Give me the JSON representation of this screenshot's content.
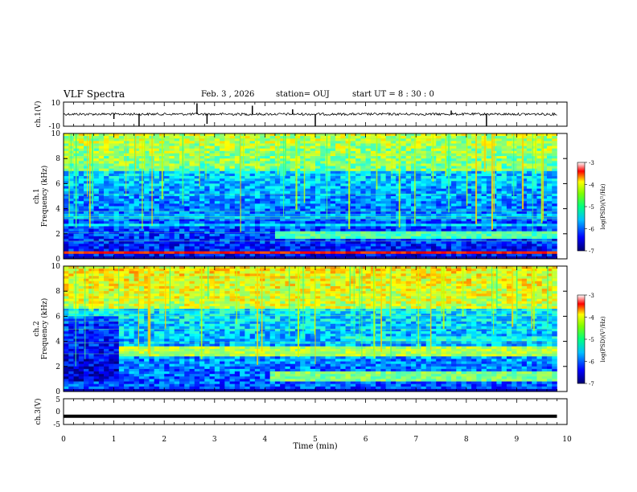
{
  "header": {
    "title": "VLF Spectra",
    "date": "Feb. 3 , 2026",
    "station": "station= OUJ",
    "start": "start UT = 8 : 30 : 0"
  },
  "colorbar": {
    "label": "log(PSD)(V²/Hz)",
    "ticks": [
      "-3",
      "-4",
      "-5",
      "-6",
      "-7"
    ],
    "colors": [
      "#000080",
      "#0000ff",
      "#0080ff",
      "#00ffff",
      "#00ff40",
      "#80ff00",
      "#ffff00",
      "#ff8000",
      "#ff0000",
      "#ffffff"
    ]
  },
  "chart_data": [
    {
      "type": "line",
      "name": "ch.1 waveform",
      "ylabel": "ch.1(V)",
      "ylim": [
        -10,
        10
      ],
      "yticks": [
        "10",
        "-10"
      ],
      "xlim": [
        0,
        10
      ],
      "baseline": 0,
      "spikes": [
        {
          "x": 1.0,
          "y": -4
        },
        {
          "x": 1.5,
          "y": -10
        },
        {
          "x": 2.65,
          "y": 9
        },
        {
          "x": 2.85,
          "y": -8
        },
        {
          "x": 3.75,
          "y": 7
        },
        {
          "x": 4.55,
          "y": 4
        },
        {
          "x": 5.0,
          "y": -10
        },
        {
          "x": 7.7,
          "y": 3
        },
        {
          "x": 8.4,
          "y": -10
        }
      ]
    },
    {
      "type": "heatmap",
      "name": "ch.1 spectrogram",
      "ylabel": "ch.1\nFrequency (kHz)",
      "ylabel_lines": [
        "ch.1",
        "Frequency (kHz)"
      ],
      "ylim": [
        0,
        10
      ],
      "yticks": [
        "0",
        "2",
        "4",
        "6",
        "8",
        "10"
      ],
      "xlim": [
        0,
        10
      ],
      "value_range": [
        -7,
        -3
      ],
      "bands": [
        {
          "f0": 0.3,
          "f1": 0.6,
          "v": -3.6
        },
        {
          "f0": 1.6,
          "f1": 2.1,
          "v": -5.2,
          "t0": 4.2,
          "t1": 9.8
        },
        {
          "f0": 2.6,
          "f1": 2.8,
          "v": -5.6
        },
        {
          "f0": 3.3,
          "f1": 3.5,
          "v": -5.8
        }
      ]
    },
    {
      "type": "heatmap",
      "name": "ch.2 spectrogram",
      "ylabel": "ch.2\nFrequency (kHz)",
      "ylabel_lines": [
        "ch.2",
        "Frequency (kHz)"
      ],
      "ylim": [
        0,
        10
      ],
      "yticks": [
        "0",
        "2",
        "4",
        "6",
        "8",
        "10"
      ],
      "xlim": [
        0,
        10
      ],
      "value_range": [
        -7,
        -3
      ],
      "bands": [
        {
          "f0": 2.8,
          "f1": 3.6,
          "v": -4.8,
          "t0": 1.1,
          "t1": 9.8
        },
        {
          "f0": 0.8,
          "f1": 1.5,
          "v": -5.0,
          "t0": 4.1,
          "t1": 9.8
        },
        {
          "f0": 4.0,
          "f1": 4.4,
          "v": -5.4,
          "t0": 5.5,
          "t1": 9.8
        }
      ]
    },
    {
      "type": "line",
      "name": "ch.3 waveform",
      "ylabel": "ch.3(V)",
      "ylim": [
        -5,
        5
      ],
      "yticks": [
        "5",
        "0",
        "-5"
      ],
      "xlim": [
        0,
        10
      ],
      "level": -1.8,
      "xlabel": "Time (min)",
      "xticks": [
        "0",
        "1",
        "2",
        "3",
        "4",
        "5",
        "6",
        "7",
        "8",
        "9",
        "10"
      ]
    }
  ]
}
